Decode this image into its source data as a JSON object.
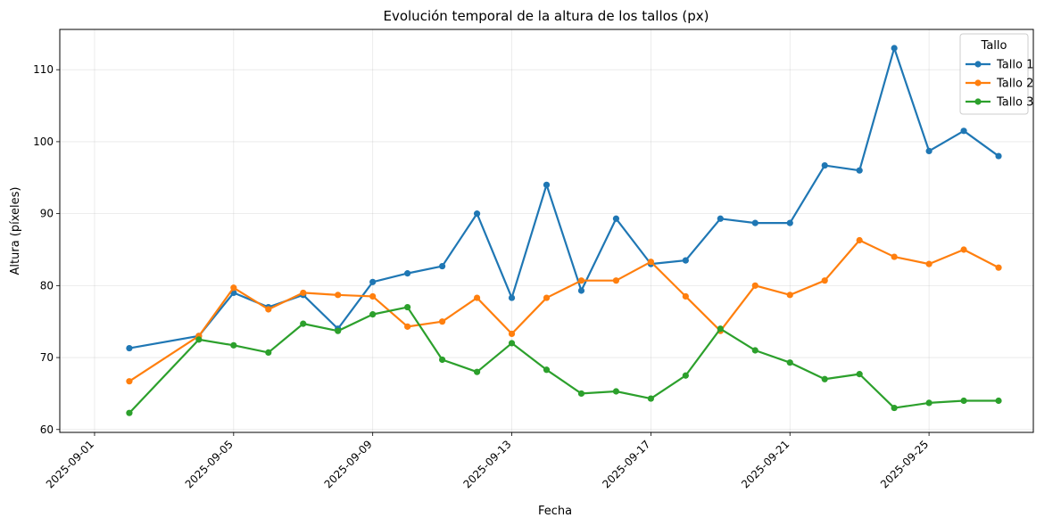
{
  "chart_data": {
    "type": "line",
    "title": "Evolución temporal de la altura de los tallos (px)",
    "xlabel": "Fecha",
    "ylabel": "Altura (píxeles)",
    "x_ticks": [
      "2025-09-01",
      "2025-09-05",
      "2025-09-09",
      "2025-09-13",
      "2025-09-17",
      "2025-09-21",
      "2025-09-25"
    ],
    "y_ticks": [
      60,
      70,
      80,
      90,
      100,
      110
    ],
    "ylim": [
      59.6,
      115.6
    ],
    "xlim": [
      "2025-08-31T00:00",
      "2025-09-28T00:00"
    ],
    "grid": true,
    "legend": {
      "title": "Tallo",
      "position": "top-right"
    },
    "x": [
      "2025-09-02",
      "2025-09-04",
      "2025-09-05",
      "2025-09-06",
      "2025-09-07",
      "2025-09-08",
      "2025-09-09",
      "2025-09-10",
      "2025-09-11",
      "2025-09-12",
      "2025-09-13",
      "2025-09-14",
      "2025-09-15",
      "2025-09-16",
      "2025-09-17",
      "2025-09-18",
      "2025-09-19",
      "2025-09-20",
      "2025-09-21",
      "2025-09-22",
      "2025-09-23",
      "2025-09-24",
      "2025-09-25",
      "2025-09-26",
      "2025-09-27"
    ],
    "series": [
      {
        "name": "Tallo 1",
        "color": "#1f77b4",
        "values": [
          71.3,
          73.0,
          79.0,
          77.0,
          78.7,
          74.0,
          80.5,
          81.7,
          82.7,
          90.0,
          78.3,
          94.0,
          79.3,
          89.3,
          83.0,
          83.5,
          89.3,
          88.7,
          88.7,
          96.7,
          96.0,
          113.0,
          98.7,
          101.5,
          98.0
        ]
      },
      {
        "name": "Tallo 2",
        "color": "#ff7f0e",
        "values": [
          66.7,
          73.0,
          79.7,
          76.7,
          79.0,
          78.7,
          78.5,
          74.3,
          75.0,
          78.3,
          73.3,
          78.3,
          80.7,
          80.7,
          83.3,
          78.5,
          73.7,
          80.0,
          78.7,
          80.7,
          86.3,
          84.0,
          83.0,
          85.0,
          82.5
        ]
      },
      {
        "name": "Tallo 3",
        "color": "#2ca02c",
        "values": [
          62.3,
          72.5,
          71.7,
          70.7,
          74.7,
          73.7,
          76.0,
          77.0,
          69.7,
          68.0,
          72.0,
          68.3,
          65.0,
          65.3,
          64.3,
          67.5,
          74.0,
          71.0,
          69.3,
          67.0,
          67.7,
          63.0,
          63.7,
          64.0,
          64.0
        ]
      }
    ]
  }
}
